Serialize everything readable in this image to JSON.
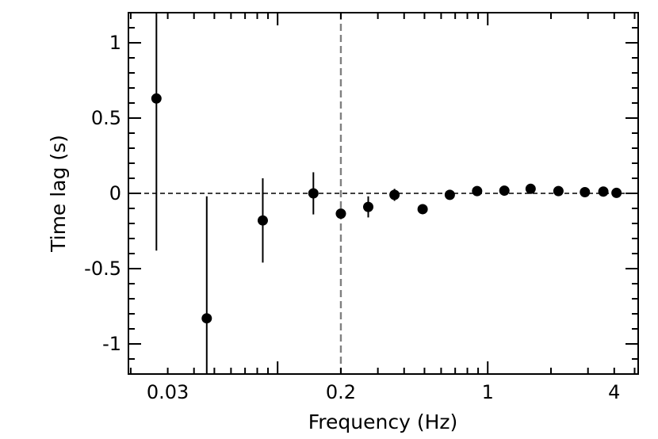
{
  "chart_data": {
    "type": "scatter",
    "title": "",
    "xlabel": "Frequency (Hz)",
    "ylabel": "Time lag (s)",
    "xscale": "log",
    "xlim": [
      0.0195,
      5.2
    ],
    "ylim": [
      -1.2,
      1.2
    ],
    "grid": false,
    "legend": "none",
    "x_ticks": [
      {
        "value": 0.03,
        "label": "0.03"
      },
      {
        "value": 0.2,
        "label": "0.2"
      },
      {
        "value": 1,
        "label": "1"
      },
      {
        "value": 4,
        "label": "4"
      }
    ],
    "y_ticks": [
      {
        "value": 1,
        "label": "1"
      },
      {
        "value": 0.5,
        "label": "0.5"
      },
      {
        "value": 0,
        "label": "0"
      },
      {
        "value": -0.5,
        "label": "-0.5"
      },
      {
        "value": -1,
        "label": "-1"
      }
    ],
    "reference_lines": {
      "horizontal_y": 0,
      "vertical_x": 0.2
    },
    "points": [
      {
        "x": 0.0265,
        "y": 0.63,
        "yerr_low": 1.01,
        "yerr_high": 0.57
      },
      {
        "x": 0.046,
        "y": -0.83,
        "yerr_low": 0.37,
        "yerr_high": 0.81
      },
      {
        "x": 0.085,
        "y": -0.18,
        "yerr_low": 0.28,
        "yerr_high": 0.28
      },
      {
        "x": 0.148,
        "y": 0.0,
        "yerr_low": 0.14,
        "yerr_high": 0.14
      },
      {
        "x": 0.2,
        "y": -0.135,
        "yerr_low": 0.02,
        "yerr_high": 0.02
      },
      {
        "x": 0.27,
        "y": -0.09,
        "yerr_low": 0.07,
        "yerr_high": 0.07
      },
      {
        "x": 0.36,
        "y": -0.01,
        "yerr_low": 0.04,
        "yerr_high": 0.04
      },
      {
        "x": 0.49,
        "y": -0.105,
        "yerr_low": 0.02,
        "yerr_high": 0.02
      },
      {
        "x": 0.66,
        "y": -0.01,
        "yerr_low": 0.03,
        "yerr_high": 0.03
      },
      {
        "x": 0.89,
        "y": 0.015,
        "yerr_low": 0.01,
        "yerr_high": 0.01
      },
      {
        "x": 1.2,
        "y": 0.018,
        "yerr_low": 0.01,
        "yerr_high": 0.01
      },
      {
        "x": 1.6,
        "y": 0.03,
        "yerr_low": 0.01,
        "yerr_high": 0.01
      },
      {
        "x": 2.17,
        "y": 0.015,
        "yerr_low": 0.01,
        "yerr_high": 0.01
      },
      {
        "x": 2.9,
        "y": 0.008,
        "yerr_low": 0.01,
        "yerr_high": 0.01
      },
      {
        "x": 3.55,
        "y": 0.012,
        "yerr_low": 0.01,
        "yerr_high": 0.01
      },
      {
        "x": 4.1,
        "y": 0.003,
        "yerr_low": 0.01,
        "yerr_high": 0.01
      }
    ],
    "colors": {
      "points": "#000000",
      "zero_line": "#000000",
      "vertical_line": "#808080"
    }
  }
}
